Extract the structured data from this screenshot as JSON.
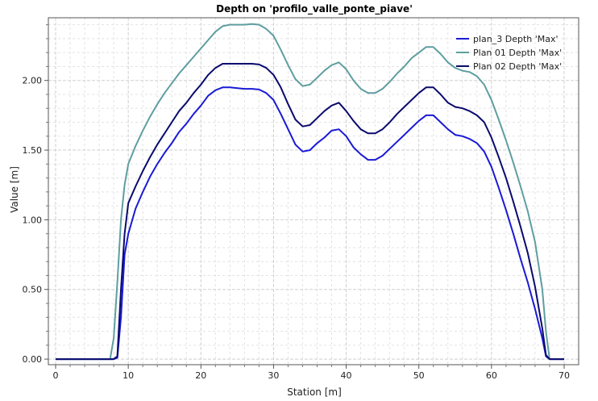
{
  "chart_data": {
    "type": "line",
    "title": "Depth on 'profilo_valle_ponte_piave'",
    "xlabel": "Station [m]",
    "ylabel": "Value [m]",
    "xlim": [
      -1,
      72
    ],
    "ylim": [
      -0.04,
      2.45
    ],
    "xticks": [
      0,
      10,
      20,
      30,
      40,
      50,
      60,
      70
    ],
    "yticks": [
      0.0,
      0.5,
      1.0,
      1.5,
      2.0
    ],
    "ytick_labels": [
      "0.00",
      "0.50",
      "1.00",
      "1.50",
      "2.00"
    ],
    "grid": true,
    "legend_position": "top-right",
    "series": [
      {
        "name": "plan_3 Depth 'Max'",
        "color": "#1a1ad6",
        "points": [
          [
            0,
            0
          ],
          [
            8,
            0
          ],
          [
            8.5,
            0.01
          ],
          [
            9,
            0.3
          ],
          [
            9.5,
            0.75
          ],
          [
            10,
            0.9
          ],
          [
            11,
            1.08
          ],
          [
            12,
            1.2
          ],
          [
            13,
            1.31
          ],
          [
            14,
            1.4
          ],
          [
            15,
            1.48
          ],
          [
            16,
            1.55
          ],
          [
            17,
            1.63
          ],
          [
            18,
            1.69
          ],
          [
            19,
            1.76
          ],
          [
            20,
            1.82
          ],
          [
            21,
            1.89
          ],
          [
            22,
            1.93
          ],
          [
            23,
            1.95
          ],
          [
            24,
            1.95
          ],
          [
            25,
            1.945
          ],
          [
            26,
            1.94
          ],
          [
            27,
            1.94
          ],
          [
            28,
            1.935
          ],
          [
            29,
            1.91
          ],
          [
            30,
            1.86
          ],
          [
            31,
            1.76
          ],
          [
            32,
            1.65
          ],
          [
            33,
            1.54
          ],
          [
            34,
            1.49
          ],
          [
            35,
            1.5
          ],
          [
            36,
            1.55
          ],
          [
            37,
            1.59
          ],
          [
            38,
            1.64
          ],
          [
            39,
            1.65
          ],
          [
            40,
            1.6
          ],
          [
            41,
            1.52
          ],
          [
            42,
            1.47
          ],
          [
            43,
            1.43
          ],
          [
            44,
            1.43
          ],
          [
            45,
            1.46
          ],
          [
            46,
            1.51
          ],
          [
            47,
            1.56
          ],
          [
            48,
            1.61
          ],
          [
            49,
            1.66
          ],
          [
            50,
            1.71
          ],
          [
            51,
            1.75
          ],
          [
            52,
            1.75
          ],
          [
            53,
            1.7
          ],
          [
            54,
            1.65
          ],
          [
            55,
            1.61
          ],
          [
            56,
            1.6
          ],
          [
            57,
            1.58
          ],
          [
            58,
            1.55
          ],
          [
            59,
            1.49
          ],
          [
            60,
            1.38
          ],
          [
            61,
            1.23
          ],
          [
            62,
            1.07
          ],
          [
            63,
            0.9
          ],
          [
            64,
            0.72
          ],
          [
            65,
            0.55
          ],
          [
            66,
            0.36
          ],
          [
            67,
            0.15
          ],
          [
            67.5,
            0.02
          ],
          [
            68,
            0
          ],
          [
            70,
            0
          ]
        ]
      },
      {
        "name": "Plan 01 Depth 'Max'",
        "color": "#5f9ea0",
        "points": [
          [
            0,
            0
          ],
          [
            7.5,
            0
          ],
          [
            8,
            0.15
          ],
          [
            8.5,
            0.55
          ],
          [
            9,
            1.0
          ],
          [
            9.5,
            1.25
          ],
          [
            10,
            1.4
          ],
          [
            11,
            1.53
          ],
          [
            12,
            1.64
          ],
          [
            13,
            1.74
          ],
          [
            14,
            1.83
          ],
          [
            15,
            1.91
          ],
          [
            16,
            1.98
          ],
          [
            17,
            2.05
          ],
          [
            18,
            2.11
          ],
          [
            19,
            2.17
          ],
          [
            20,
            2.23
          ],
          [
            21,
            2.29
          ],
          [
            22,
            2.35
          ],
          [
            23,
            2.39
          ],
          [
            24,
            2.4
          ],
          [
            25,
            2.4
          ],
          [
            26,
            2.4
          ],
          [
            27,
            2.405
          ],
          [
            28,
            2.4
          ],
          [
            29,
            2.37
          ],
          [
            30,
            2.32
          ],
          [
            31,
            2.22
          ],
          [
            32,
            2.11
          ],
          [
            33,
            2.01
          ],
          [
            34,
            1.96
          ],
          [
            35,
            1.97
          ],
          [
            36,
            2.02
          ],
          [
            37,
            2.07
          ],
          [
            38,
            2.11
          ],
          [
            39,
            2.13
          ],
          [
            40,
            2.08
          ],
          [
            41,
            2.0
          ],
          [
            42,
            1.94
          ],
          [
            43,
            1.91
          ],
          [
            44,
            1.91
          ],
          [
            45,
            1.94
          ],
          [
            46,
            1.99
          ],
          [
            47,
            2.05
          ],
          [
            48,
            2.1
          ],
          [
            49,
            2.16
          ],
          [
            50,
            2.2
          ],
          [
            51,
            2.24
          ],
          [
            52,
            2.24
          ],
          [
            53,
            2.19
          ],
          [
            54,
            2.13
          ],
          [
            55,
            2.09
          ],
          [
            56,
            2.07
          ],
          [
            57,
            2.06
          ],
          [
            58,
            2.03
          ],
          [
            59,
            1.97
          ],
          [
            60,
            1.86
          ],
          [
            61,
            1.72
          ],
          [
            62,
            1.57
          ],
          [
            63,
            1.41
          ],
          [
            64,
            1.24
          ],
          [
            65,
            1.06
          ],
          [
            66,
            0.84
          ],
          [
            67,
            0.5
          ],
          [
            67.5,
            0.2
          ],
          [
            68,
            0
          ],
          [
            70,
            0
          ]
        ]
      },
      {
        "name": "Plan 02 Depth 'Max'",
        "color": "#0a0a6e",
        "points": [
          [
            0,
            0
          ],
          [
            8,
            0
          ],
          [
            8.5,
            0.02
          ],
          [
            9,
            0.5
          ],
          [
            9.5,
            0.9
          ],
          [
            10,
            1.12
          ],
          [
            11,
            1.24
          ],
          [
            12,
            1.35
          ],
          [
            13,
            1.45
          ],
          [
            14,
            1.54
          ],
          [
            15,
            1.62
          ],
          [
            16,
            1.7
          ],
          [
            17,
            1.78
          ],
          [
            18,
            1.84
          ],
          [
            19,
            1.91
          ],
          [
            20,
            1.97
          ],
          [
            21,
            2.04
          ],
          [
            22,
            2.09
          ],
          [
            23,
            2.12
          ],
          [
            24,
            2.12
          ],
          [
            25,
            2.12
          ],
          [
            26,
            2.12
          ],
          [
            27,
            2.12
          ],
          [
            28,
            2.115
          ],
          [
            29,
            2.09
          ],
          [
            30,
            2.04
          ],
          [
            31,
            1.95
          ],
          [
            32,
            1.83
          ],
          [
            33,
            1.72
          ],
          [
            34,
            1.67
          ],
          [
            35,
            1.68
          ],
          [
            36,
            1.73
          ],
          [
            37,
            1.78
          ],
          [
            38,
            1.82
          ],
          [
            39,
            1.84
          ],
          [
            40,
            1.78
          ],
          [
            41,
            1.71
          ],
          [
            42,
            1.65
          ],
          [
            43,
            1.62
          ],
          [
            44,
            1.62
          ],
          [
            45,
            1.65
          ],
          [
            46,
            1.7
          ],
          [
            47,
            1.76
          ],
          [
            48,
            1.81
          ],
          [
            49,
            1.86
          ],
          [
            50,
            1.91
          ],
          [
            51,
            1.95
          ],
          [
            52,
            1.95
          ],
          [
            53,
            1.9
          ],
          [
            54,
            1.84
          ],
          [
            55,
            1.81
          ],
          [
            56,
            1.8
          ],
          [
            57,
            1.78
          ],
          [
            58,
            1.75
          ],
          [
            59,
            1.7
          ],
          [
            60,
            1.59
          ],
          [
            61,
            1.45
          ],
          [
            62,
            1.3
          ],
          [
            63,
            1.13
          ],
          [
            64,
            0.95
          ],
          [
            65,
            0.76
          ],
          [
            66,
            0.52
          ],
          [
            67,
            0.22
          ],
          [
            67.5,
            0.03
          ],
          [
            68,
            0
          ],
          [
            70,
            0
          ]
        ]
      }
    ]
  }
}
